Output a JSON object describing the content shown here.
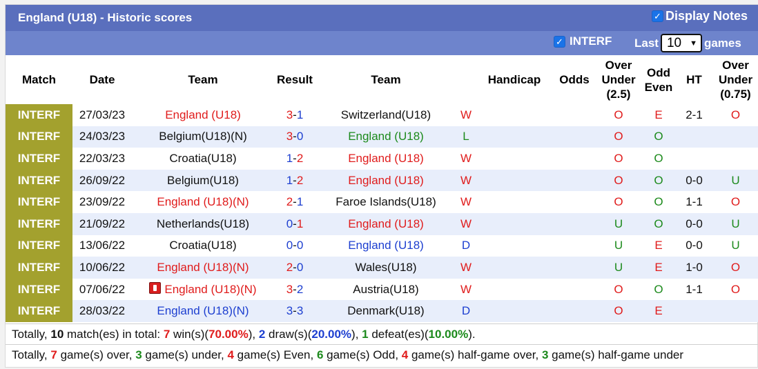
{
  "title": "England (U18) - Historic scores",
  "display_notes_label": "Display Notes",
  "filter": {
    "interf_label": "INTERF",
    "last_label": "Last",
    "last_value": "10",
    "games_label": "games"
  },
  "headers": {
    "match": "Match",
    "date": "Date",
    "team1": "Team",
    "result": "Result",
    "team2": "Team",
    "handicap": "Handicap",
    "odds": "Odds",
    "ou25": [
      "Over",
      "Under",
      "(2.5)"
    ],
    "oddeven": [
      "Odd",
      "Even"
    ],
    "ht": "HT",
    "ou075": [
      "Over",
      "Under",
      "(0.75)"
    ]
  },
  "rows": [
    {
      "match": "INTERF",
      "date": "27/03/23",
      "team1": "England (U18)",
      "team1_color": "red",
      "s1": "3",
      "s1_color": "red",
      "sep": "-",
      "s2": "1",
      "s2_color": "blue",
      "team2": "Switzerland(U18)",
      "team2_color": "black",
      "wl": "W",
      "wl_color": "red",
      "handicap": "",
      "odds": "",
      "ou": "O",
      "ou_color": "red",
      "oe": "E",
      "oe_color": "red",
      "ht": "2-1",
      "ou2": "O",
      "ou2_color": "red",
      "card": false
    },
    {
      "match": "INTERF",
      "date": "24/03/23",
      "team1": "Belgium(U18)(N)",
      "team1_color": "black",
      "s1": "3",
      "s1_color": "red",
      "sep": "-",
      "s2": "0",
      "s2_color": "blue",
      "team2": "England (U18)",
      "team2_color": "green",
      "wl": "L",
      "wl_color": "green",
      "handicap": "",
      "odds": "",
      "ou": "O",
      "ou_color": "red",
      "oe": "O",
      "oe_color": "green",
      "ht": "",
      "ou2": "",
      "ou2_color": "red",
      "card": false
    },
    {
      "match": "INTERF",
      "date": "22/03/23",
      "team1": "Croatia(U18)",
      "team1_color": "black",
      "s1": "1",
      "s1_color": "blue",
      "sep": "-",
      "s2": "2",
      "s2_color": "red",
      "team2": "England (U18)",
      "team2_color": "red",
      "wl": "W",
      "wl_color": "red",
      "handicap": "",
      "odds": "",
      "ou": "O",
      "ou_color": "red",
      "oe": "O",
      "oe_color": "green",
      "ht": "",
      "ou2": "",
      "ou2_color": "red",
      "card": false
    },
    {
      "match": "INTERF",
      "date": "26/09/22",
      "team1": "Belgium(U18)",
      "team1_color": "black",
      "s1": "1",
      "s1_color": "blue",
      "sep": "-",
      "s2": "2",
      "s2_color": "red",
      "team2": "England (U18)",
      "team2_color": "red",
      "wl": "W",
      "wl_color": "red",
      "handicap": "",
      "odds": "",
      "ou": "O",
      "ou_color": "red",
      "oe": "O",
      "oe_color": "green",
      "ht": "0-0",
      "ou2": "U",
      "ou2_color": "green",
      "card": false
    },
    {
      "match": "INTERF",
      "date": "23/09/22",
      "team1": "England (U18)(N)",
      "team1_color": "red",
      "s1": "2",
      "s1_color": "red",
      "sep": "-",
      "s2": "1",
      "s2_color": "blue",
      "team2": "Faroe Islands(U18)",
      "team2_color": "black",
      "wl": "W",
      "wl_color": "red",
      "handicap": "",
      "odds": "",
      "ou": "O",
      "ou_color": "red",
      "oe": "O",
      "oe_color": "green",
      "ht": "1-1",
      "ou2": "O",
      "ou2_color": "red",
      "card": false
    },
    {
      "match": "INTERF",
      "date": "21/09/22",
      "team1": "Netherlands(U18)",
      "team1_color": "black",
      "s1": "0",
      "s1_color": "blue",
      "sep": "-",
      "s2": "1",
      "s2_color": "red",
      "team2": "England (U18)",
      "team2_color": "red",
      "wl": "W",
      "wl_color": "red",
      "handicap": "",
      "odds": "",
      "ou": "U",
      "ou_color": "green",
      "oe": "O",
      "oe_color": "green",
      "ht": "0-0",
      "ou2": "U",
      "ou2_color": "green",
      "card": false
    },
    {
      "match": "INTERF",
      "date": "13/06/22",
      "team1": "Croatia(U18)",
      "team1_color": "black",
      "s1": "0",
      "s1_color": "blue",
      "sep": "-",
      "s2": "0",
      "s2_color": "blue",
      "team2": "England (U18)",
      "team2_color": "blue",
      "wl": "D",
      "wl_color": "blue",
      "handicap": "",
      "odds": "",
      "ou": "U",
      "ou_color": "green",
      "oe": "E",
      "oe_color": "red",
      "ht": "0-0",
      "ou2": "U",
      "ou2_color": "green",
      "card": false
    },
    {
      "match": "INTERF",
      "date": "10/06/22",
      "team1": "England (U18)(N)",
      "team1_color": "red",
      "s1": "2",
      "s1_color": "red",
      "sep": "-",
      "s2": "0",
      "s2_color": "blue",
      "team2": "Wales(U18)",
      "team2_color": "black",
      "wl": "W",
      "wl_color": "red",
      "handicap": "",
      "odds": "",
      "ou": "U",
      "ou_color": "green",
      "oe": "E",
      "oe_color": "red",
      "ht": "1-0",
      "ou2": "O",
      "ou2_color": "red",
      "card": false
    },
    {
      "match": "INTERF",
      "date": "07/06/22",
      "team1": "England (U18)(N)",
      "team1_color": "red",
      "s1": "3",
      "s1_color": "red",
      "sep": "-",
      "s2": "2",
      "s2_color": "blue",
      "team2": "Austria(U18)",
      "team2_color": "black",
      "wl": "W",
      "wl_color": "red",
      "handicap": "",
      "odds": "",
      "ou": "O",
      "ou_color": "red",
      "oe": "O",
      "oe_color": "green",
      "ht": "1-1",
      "ou2": "O",
      "ou2_color": "red",
      "card": true
    },
    {
      "match": "INTERF",
      "date": "28/03/22",
      "team1": "England (U18)(N)",
      "team1_color": "blue",
      "s1": "3",
      "s1_color": "blue",
      "sep": "-",
      "s2": "3",
      "s2_color": "blue",
      "team2": "Denmark(U18)",
      "team2_color": "black",
      "wl": "D",
      "wl_color": "blue",
      "handicap": "",
      "odds": "",
      "ou": "O",
      "ou_color": "red",
      "oe": "E",
      "oe_color": "red",
      "ht": "",
      "ou2": "",
      "ou2_color": "red",
      "card": false
    }
  ],
  "summary1": {
    "p0": "Totally, ",
    "n_matches": "10",
    "p1": " match(es) in total: ",
    "wins": "7",
    "p2": " win(s)(",
    "win_pct": "70.00%",
    "p3": "), ",
    "draws": "2",
    "p4": " draw(s)(",
    "draw_pct": "20.00%",
    "p5": "), ",
    "defeats": "1",
    "p6": " defeat(es)(",
    "defeat_pct": "10.00%",
    "p7": ")."
  },
  "summary2": {
    "p0": "Totally, ",
    "over": "7",
    "p1": " game(s) over, ",
    "under": "3",
    "p2": " game(s) under, ",
    "even": "4",
    "p3": " game(s) Even, ",
    "odd": "6",
    "p4": " game(s) Odd, ",
    "hg_over": "4",
    "p5": " game(s) half-game over, ",
    "hg_under": "3",
    "p6": " game(s) half-game under"
  },
  "colors": {
    "title_bar": "#5a6fbd",
    "filter_bar": "#6e84cc",
    "match_cell": "#a3a12e",
    "row_alt": "#e8eefb",
    "red": "#e01c1c",
    "blue": "#1d3fd0",
    "green": "#1c8a1c"
  },
  "icons": {
    "display_notes_checkbox": "checkbox-checked-icon",
    "interf_checkbox": "checkbox-checked-icon",
    "select_chevron": "chevron-down-icon",
    "red_card": "red-card-icon"
  }
}
